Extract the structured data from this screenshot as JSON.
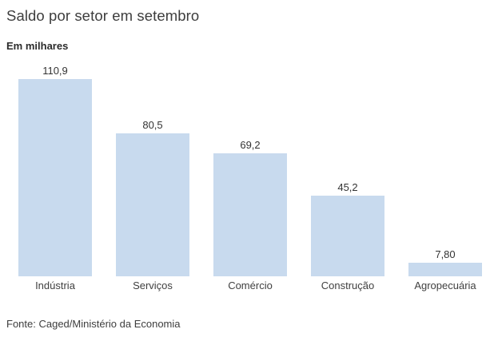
{
  "chart_data": {
    "type": "bar",
    "title": "Saldo por setor em setembro",
    "subtitle": "Em milhares",
    "categories": [
      "Indústria",
      "Serviços",
      "Comércio",
      "Construção",
      "Agropecuária"
    ],
    "values": [
      110.9,
      80.5,
      69.2,
      45.2,
      7.8
    ],
    "value_labels": [
      "110,9",
      "80,5",
      "69,2",
      "45,2",
      "7,80"
    ],
    "source": "Fonte: Caged/Ministério da Economia",
    "bar_color": "#c8daee",
    "ylim": [
      0,
      124
    ],
    "grid": false,
    "legend": false,
    "orientation": "vertical"
  }
}
